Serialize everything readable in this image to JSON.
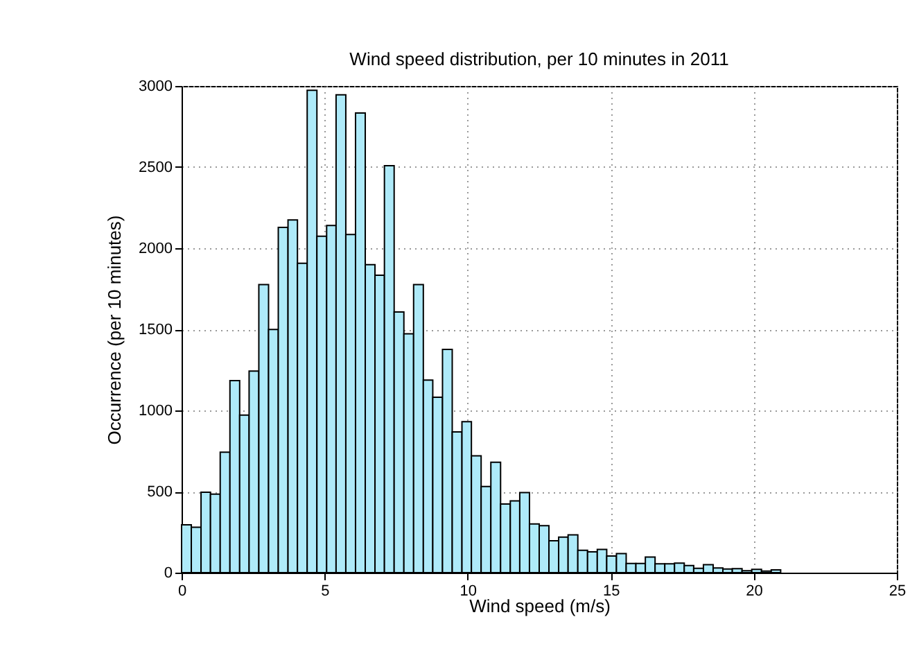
{
  "chart_data": {
    "type": "histogram",
    "title": "Wind speed distribution, per 10 minutes in 2011",
    "xlabel": "Wind speed (m/s)",
    "ylabel": "Occurrence (per 10 minutes)",
    "bins": [
      0,
      0.34,
      0.68,
      1.01,
      1.35,
      1.69,
      2.03,
      2.36,
      2.7,
      3.04,
      3.38,
      3.72,
      4.05,
      4.39,
      4.73,
      5.07,
      5.4,
      5.74,
      6.08,
      6.42,
      6.76,
      7.09,
      7.43,
      7.77,
      8.11,
      8.45,
      8.78,
      9.12,
      9.46,
      9.8,
      10.13,
      10.47,
      10.81,
      11.15,
      11.49,
      11.82,
      12.16,
      12.5,
      12.84,
      13.18,
      13.51,
      13.85,
      14.19,
      14.53,
      14.86,
      15.2,
      15.54,
      15.88,
      16.21,
      16.55,
      16.89,
      17.23,
      17.57,
      17.9,
      18.24,
      18.58,
      18.92,
      19.25,
      19.59,
      19.93,
      20.27,
      20.61,
      20.94
    ],
    "values": [
      295,
      280,
      496,
      484,
      742,
      1184,
      971,
      1243,
      1776,
      1499,
      2128,
      2174,
      1907,
      2973,
      2074,
      2140,
      2946,
      2084,
      2833,
      1899,
      1833,
      2509,
      1607,
      1472,
      1776,
      1187,
      1081,
      1376,
      867,
      931,
      720,
      531,
      681,
      423,
      442,
      494,
      300,
      290,
      197,
      219,
      233,
      138,
      128,
      143,
      103,
      118,
      57,
      57,
      96,
      54,
      54,
      59,
      44,
      27,
      49,
      29,
      22,
      25,
      12,
      20,
      10,
      17
    ],
    "color": "#aeeaf9",
    "xlim": [
      0,
      25
    ],
    "xticks": [
      0,
      5,
      10,
      15,
      20,
      25
    ],
    "ylim": [
      0,
      3000
    ],
    "yticks": [
      0,
      500,
      1000,
      1500,
      2000,
      2500,
      3000
    ],
    "grid": true
  }
}
